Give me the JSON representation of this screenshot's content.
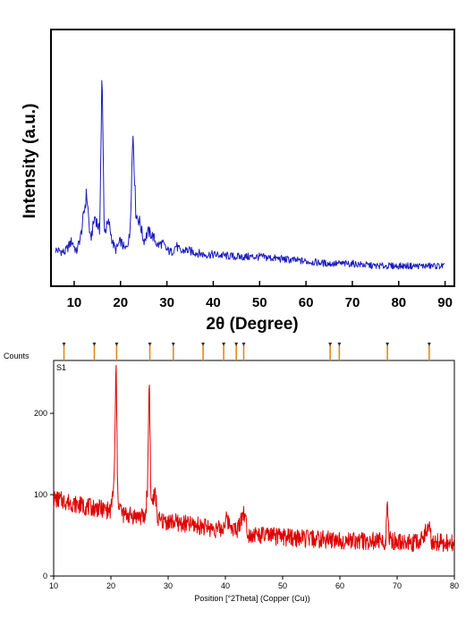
{
  "chart_data": [
    {
      "type": "line",
      "title": "",
      "xlabel": "2θ (Degree)",
      "ylabel": "Intensity (a.u.)",
      "xlim": [
        5,
        92
      ],
      "ylim": [
        0,
        100
      ],
      "y_tick_labels_shown": false,
      "grid": false,
      "color": "#1a1ac0",
      "x_ticks": [
        10,
        20,
        30,
        40,
        50,
        60,
        70,
        80,
        90
      ],
      "series": [
        {
          "x": [
            6,
            8,
            9.5,
            10.5,
            11.5,
            12.7,
            13.5,
            14.5,
            15.5,
            16,
            16.5,
            17.5,
            18.3,
            19,
            20,
            21,
            22,
            22.7,
            23.3,
            24.2,
            25,
            26,
            27,
            28,
            29,
            30,
            31,
            32,
            33,
            34,
            36,
            38,
            40,
            45,
            50,
            55,
            60,
            65,
            70,
            75,
            80,
            85,
            90
          ],
          "y": [
            10,
            9,
            14,
            9,
            17,
            35,
            14,
            25,
            18,
            87,
            18,
            22,
            13,
            10,
            14,
            10,
            16,
            63,
            26,
            22,
            14,
            18,
            16,
            12,
            13,
            10,
            9,
            12,
            9,
            10,
            9,
            8,
            8,
            7,
            7,
            6,
            5,
            4,
            4,
            3,
            3,
            3,
            3
          ]
        }
      ]
    },
    {
      "type": "line",
      "title": "",
      "xlabel": "Position [°2Theta] (Copper (Cu))",
      "ylabel": "Counts",
      "sample_label": "S1",
      "xlim": [
        10,
        80
      ],
      "ylim": [
        0,
        265
      ],
      "x_ticks": [
        10,
        20,
        30,
        40,
        50,
        60,
        70,
        80
      ],
      "y_ticks": [
        0,
        100,
        200
      ],
      "grid": false,
      "color": "#e00000",
      "marker_color": "#e08a1a",
      "reference_peaks": [
        11.8,
        17.1,
        21.0,
        26.8,
        30.9,
        36.1,
        39.7,
        41.9,
        43.2,
        58.3,
        59.9,
        68.3,
        75.6
      ],
      "series": [
        {
          "x": [
            10,
            12,
            14,
            16,
            18,
            20,
            20.6,
            20.9,
            21.2,
            22,
            24,
            26,
            26.4,
            26.7,
            27,
            27.8,
            28.2,
            30,
            32,
            34,
            36,
            38,
            39.5,
            40,
            42,
            43.2,
            44,
            46,
            48,
            50,
            52,
            54,
            56,
            58,
            60,
            62,
            64,
            66,
            68,
            68.3,
            68.6,
            70,
            72,
            74,
            75.6,
            76,
            78,
            80
          ],
          "y": [
            95,
            92,
            88,
            85,
            83,
            80,
            120,
            265,
            95,
            76,
            74,
            72,
            110,
            250,
            90,
            100,
            68,
            67,
            65,
            63,
            61,
            58,
            57,
            70,
            55,
            80,
            52,
            50,
            49,
            48,
            47,
            46,
            45,
            45,
            44,
            44,
            43,
            43,
            42,
            90,
            45,
            42,
            41,
            41,
            65,
            42,
            41,
            40
          ]
        }
      ]
    }
  ]
}
